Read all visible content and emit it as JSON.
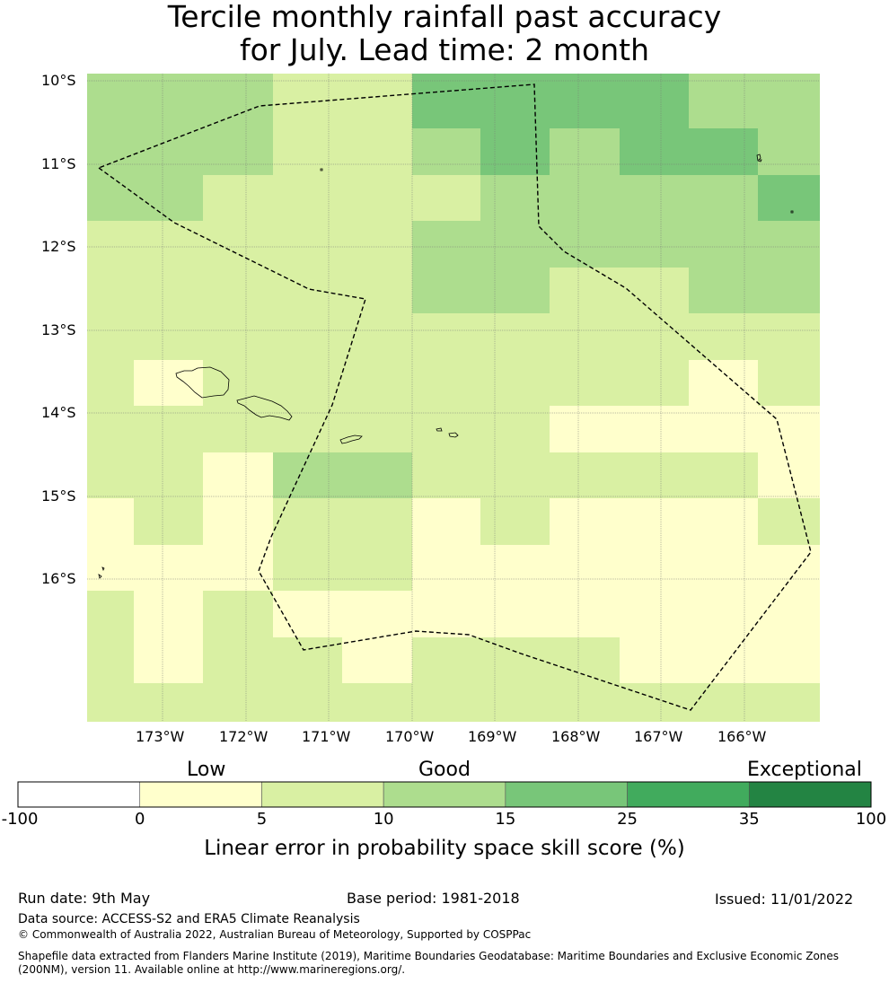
{
  "title": {
    "line1": "Tercile monthly rainfall past accuracy",
    "line2": "for July. Lead time: 2 month"
  },
  "map": {
    "lat_labels": [
      "10°S",
      "11°S",
      "12°S",
      "13°S",
      "14°S",
      "15°S",
      "16°S"
    ],
    "lon_labels": [
      "173°W",
      "172°W",
      "171°W",
      "170°W",
      "169°W",
      "168°W",
      "167°W",
      "166°W"
    ],
    "skill_grid_classes": [
      [
        3,
        3,
        3,
        2,
        2,
        4,
        4,
        4,
        4,
        3,
        3,
        2
      ],
      [
        3,
        3,
        3,
        2,
        2,
        3,
        4,
        3,
        4,
        4,
        3,
        3
      ],
      [
        3,
        3,
        2,
        2,
        2,
        2,
        3,
        3,
        3,
        3,
        4,
        4
      ],
      [
        2,
        2,
        2,
        2,
        2,
        3,
        3,
        3,
        3,
        3,
        3,
        3
      ],
      [
        2,
        2,
        2,
        2,
        2,
        3,
        3,
        2,
        2,
        3,
        3,
        3
      ],
      [
        2,
        2,
        2,
        2,
        2,
        2,
        2,
        2,
        2,
        2,
        2,
        2
      ],
      [
        2,
        1,
        2,
        2,
        2,
        2,
        2,
        2,
        2,
        1,
        2,
        2
      ],
      [
        2,
        2,
        2,
        2,
        2,
        2,
        2,
        1,
        1,
        1,
        1,
        1
      ],
      [
        2,
        2,
        1,
        3,
        3,
        2,
        2,
        2,
        2,
        2,
        1,
        1
      ],
      [
        1,
        2,
        1,
        2,
        2,
        1,
        2,
        1,
        1,
        1,
        2,
        1
      ],
      [
        1,
        1,
        1,
        2,
        2,
        1,
        1,
        1,
        1,
        1,
        1,
        1
      ],
      [
        2,
        1,
        2,
        1,
        1,
        1,
        1,
        1,
        1,
        1,
        1,
        1
      ],
      [
        2,
        1,
        2,
        2,
        1,
        2,
        2,
        2,
        1,
        1,
        1,
        2
      ],
      [
        2,
        2,
        2,
        2,
        2,
        2,
        2,
        2,
        2,
        2,
        2,
        2
      ]
    ]
  },
  "colorbar": {
    "categories": [
      "Low",
      "Good",
      "Exceptional"
    ],
    "ticks": [
      "-100",
      "0",
      "5",
      "10",
      "15",
      "25",
      "35",
      "100"
    ],
    "colors": [
      "#ffffff",
      "#ffffcc",
      "#d9f0a3",
      "#addd8e",
      "#78c679",
      "#41ab5d",
      "#238443"
    ],
    "label": "Linear error in probability space skill score (%)"
  },
  "footer": {
    "run_date": "Run date: 9th May",
    "base_period": "Base period: 1981-2018",
    "issued": "Issued: 11/01/2022",
    "data_source": "Data source: ACCESS-S2 and ERA5 Climate Reanalysis",
    "copyright": "© Commonwealth of Australia 2022, Australian Bureau of Meteorology, Supported by COSPPac",
    "shapefile_line1": "Shapefile data extracted from Flanders Marine Institute (2019), Maritime Boundaries Geodatabase: Maritime Boundaries and Exclusive Economic Zones",
    "shapefile_line2": "(200NM), version 11. Available online at http://www.marineregions.org/."
  }
}
